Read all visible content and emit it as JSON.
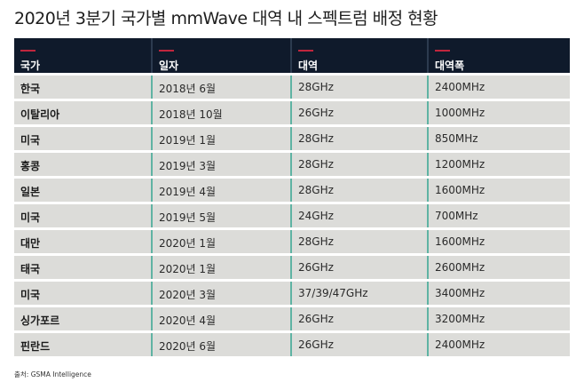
{
  "title": "2020년 3분기 국가별 mmWave 대역 내 스펙트럼 배정 현황",
  "table": {
    "headers": [
      "국가",
      "일자",
      "대역",
      "대역폭"
    ],
    "rows": [
      {
        "country": "한국",
        "date": "2018년 6월",
        "band": "28GHz",
        "bandwidth": "2400MHz"
      },
      {
        "country": "이탈리아",
        "date": "2018년 10월",
        "band": "26GHz",
        "bandwidth": "1000MHz"
      },
      {
        "country": "미국",
        "date": "2019년 1월",
        "band": "28GHz",
        "bandwidth": "850MHz"
      },
      {
        "country": "홍콩",
        "date": "2019년 3월",
        "band": "28GHz",
        "bandwidth": "1200MHz"
      },
      {
        "country": "일본",
        "date": "2019년 4월",
        "band": "28GHz",
        "bandwidth": "1600MHz"
      },
      {
        "country": "미국",
        "date": "2019년 5월",
        "band": "24GHz",
        "bandwidth": "700MHz"
      },
      {
        "country": "대만",
        "date": "2020년 1월",
        "band": "28GHz",
        "bandwidth": "1600MHz"
      },
      {
        "country": "태국",
        "date": "2020년 1월",
        "band": "26GHz",
        "bandwidth": "2600MHz"
      },
      {
        "country": "미국",
        "date": "2020년 3월",
        "band": "37/39/47GHz",
        "bandwidth": "3400MHz"
      },
      {
        "country": "싱가포르",
        "date": "2020년 4월",
        "band": "26GHz",
        "bandwidth": "3200MHz"
      },
      {
        "country": "핀란드",
        "date": "2020년 6월",
        "band": "26GHz",
        "bandwidth": "2400MHz"
      }
    ]
  },
  "footnote": "출처: GSMA Intelligence",
  "colors": {
    "header_bg": "#0f1a2b",
    "header_accent": "#c0263d",
    "row_bg": "#dcdcd9",
    "column_divider": "#5fb3a3"
  }
}
